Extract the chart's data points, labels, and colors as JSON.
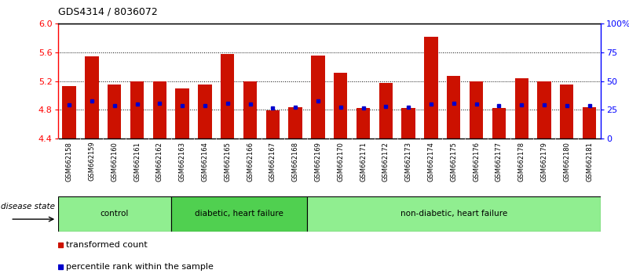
{
  "title": "GDS4314 / 8036072",
  "samples": [
    "GSM662158",
    "GSM662159",
    "GSM662160",
    "GSM662161",
    "GSM662162",
    "GSM662163",
    "GSM662164",
    "GSM662165",
    "GSM662166",
    "GSM662167",
    "GSM662168",
    "GSM662169",
    "GSM662170",
    "GSM662171",
    "GSM662172",
    "GSM662173",
    "GSM662174",
    "GSM662175",
    "GSM662176",
    "GSM662177",
    "GSM662178",
    "GSM662179",
    "GSM662180",
    "GSM662181"
  ],
  "red_values": [
    5.13,
    5.54,
    5.15,
    5.2,
    5.2,
    5.1,
    5.15,
    5.58,
    5.2,
    4.79,
    4.84,
    5.55,
    5.31,
    4.83,
    5.17,
    4.83,
    5.82,
    5.27,
    5.2,
    4.83,
    5.24,
    5.19,
    5.15,
    4.84
  ],
  "blue_values": [
    4.87,
    4.92,
    4.86,
    4.88,
    4.89,
    4.86,
    4.86,
    4.89,
    4.88,
    4.83,
    4.84,
    4.92,
    4.84,
    4.83,
    4.85,
    4.84,
    4.88,
    4.89,
    4.88,
    4.86,
    4.87,
    4.87,
    4.86,
    4.86
  ],
  "groups": [
    {
      "label": "control",
      "start": 0,
      "end": 5,
      "color": "#90ee90"
    },
    {
      "label": "diabetic, heart failure",
      "start": 5,
      "end": 11,
      "color": "#50d050"
    },
    {
      "label": "non-diabetic, heart failure",
      "start": 11,
      "end": 24,
      "color": "#90ee90"
    }
  ],
  "ylim": [
    4.4,
    6.0
  ],
  "yticks_left": [
    4.4,
    4.8,
    5.2,
    5.6,
    6.0
  ],
  "yticks_right_labels": [
    "0",
    "25",
    "50",
    "75",
    "100%"
  ],
  "bar_color": "#cc1100",
  "dot_color": "#0000cc",
  "bar_width": 0.6,
  "baseline": 4.4,
  "background_color": "#ffffff",
  "tick_area_color": "#c8c8c8",
  "group_border_color": "#000000",
  "legend_red_label": "transformed count",
  "legend_blue_label": "percentile rank within the sample",
  "disease_state_label": "disease state"
}
